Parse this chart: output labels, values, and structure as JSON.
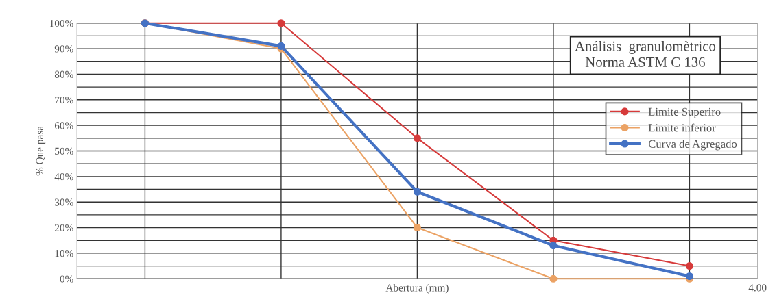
{
  "chart_data": {
    "type": "line",
    "title": "Análisis  granulomètrico\nNorma ASTM C 136",
    "xlabel": "Abertura (mm)",
    "ylabel": "% Que pasa",
    "categories": [
      null,
      null,
      null,
      null,
      null
    ],
    "annotations": [
      "4.00"
    ],
    "ylim": [
      0,
      100
    ],
    "yticks": [
      {
        "value": 0,
        "label": "0%"
      },
      {
        "value": 5,
        "label": null
      },
      {
        "value": 10,
        "label": "10%"
      },
      {
        "value": 15,
        "label": null
      },
      {
        "value": 20,
        "label": "20%"
      },
      {
        "value": 25,
        "label": null
      },
      {
        "value": 30,
        "label": "30%"
      },
      {
        "value": 35,
        "label": null
      },
      {
        "value": 40,
        "label": "40%"
      },
      {
        "value": 45,
        "label": null
      },
      {
        "value": 50,
        "label": "50%"
      },
      {
        "value": 55,
        "label": null
      },
      {
        "value": 60,
        "label": "60%"
      },
      {
        "value": 65,
        "label": null
      },
      {
        "value": 70,
        "label": "70%"
      },
      {
        "value": 75,
        "label": null
      },
      {
        "value": 80,
        "label": "80%"
      },
      {
        "value": 85,
        "label": null
      },
      {
        "value": 90,
        "label": "90%"
      },
      {
        "value": 95,
        "label": null
      },
      {
        "value": 100,
        "label": "100%"
      }
    ],
    "grid": true,
    "legend": "top right",
    "marker": "circle",
    "line_style": "solid",
    "series": [
      {
        "name": "Limite Superiro",
        "color": "#d63a3a",
        "values": [
          100,
          100,
          55,
          15,
          5
        ]
      },
      {
        "name": "Limite inferior",
        "color": "#eba264",
        "values": [
          100,
          90,
          20,
          0,
          0
        ]
      },
      {
        "name": "Curva de Agregado",
        "color": "#4472c4",
        "values": [
          100,
          91,
          34,
          13,
          1
        ]
      }
    ]
  }
}
